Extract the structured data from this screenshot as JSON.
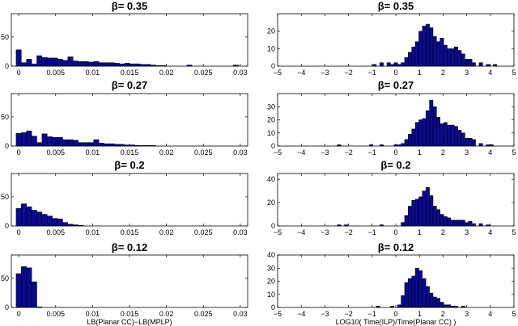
{
  "chart_data": [
    {
      "type": "bar",
      "title": "β= 0.35",
      "xlabel": "",
      "ylabel": "",
      "xlim": [
        -0.001,
        0.031
      ],
      "ylim": [
        0,
        90
      ],
      "bin_width": 0.0007,
      "xticks": [
        0,
        0.005,
        0.01,
        0.015,
        0.02,
        0.025,
        0.03
      ],
      "xtick_labels": [
        "0",
        "0.005",
        "0.01",
        "0.015",
        "0.02",
        "0.025",
        "0.03"
      ],
      "yticks": [
        0,
        50
      ],
      "ytick_labels": [
        "0",
        "50"
      ],
      "bin_centers": [
        0.0,
        0.0007,
        0.0014,
        0.0021,
        0.0028,
        0.0035,
        0.0042,
        0.0049,
        0.0056,
        0.0063,
        0.007,
        0.0077,
        0.0084,
        0.0091,
        0.0098,
        0.0105,
        0.0112,
        0.0119,
        0.0126,
        0.0133,
        0.014,
        0.0147,
        0.0154,
        0.0161,
        0.0168,
        0.0175,
        0.0182,
        0.0189,
        0.0196,
        0.0231,
        0.0294
      ],
      "values": [
        28,
        6,
        12,
        4,
        18,
        15,
        14,
        14,
        12,
        10,
        16,
        9,
        8,
        8,
        7,
        8,
        6,
        6,
        6,
        5,
        4,
        5,
        4,
        4,
        3,
        3,
        2,
        1,
        1,
        2,
        2
      ],
      "color": "#0a0a8c"
    },
    {
      "type": "bar",
      "title": "β= 0.35",
      "xlabel": "",
      "ylabel": "",
      "xlim": [
        -5,
        5
      ],
      "ylim": [
        0,
        30
      ],
      "bin_width": 0.15,
      "xticks": [
        -5,
        -4,
        -3,
        -2,
        -1,
        0,
        1,
        2,
        3,
        4,
        5
      ],
      "xtick_labels": [
        "−5",
        "−4",
        "−3",
        "−2",
        "−1",
        "0",
        "1",
        "2",
        "3",
        "4",
        "5"
      ],
      "yticks": [
        0,
        10,
        20
      ],
      "ytick_labels": [
        "0",
        "10",
        "20"
      ],
      "bin_centers": [
        -0.9,
        -0.6,
        -0.3,
        -0.15,
        0.0,
        0.15,
        0.3,
        0.45,
        0.6,
        0.75,
        0.9,
        1.05,
        1.2,
        1.35,
        1.5,
        1.65,
        1.8,
        1.95,
        2.1,
        2.25,
        2.4,
        2.55,
        2.7,
        2.85,
        3.0,
        3.15,
        3.3,
        3.6,
        3.9,
        4.2
      ],
      "values": [
        1,
        2,
        2,
        1,
        2,
        1,
        2,
        5,
        8,
        11,
        14,
        20,
        23,
        24,
        22,
        17,
        14,
        16,
        12,
        10,
        10,
        11,
        9,
        7,
        4,
        4,
        2,
        2,
        1,
        1
      ],
      "color": "#0a0a8c"
    },
    {
      "type": "bar",
      "title": "β= 0.27",
      "xlabel": "",
      "ylabel": "",
      "xlim": [
        -0.001,
        0.031
      ],
      "ylim": [
        0,
        90
      ],
      "bin_width": 0.0007,
      "xticks": [
        0,
        0.005,
        0.01,
        0.015,
        0.02,
        0.025,
        0.03
      ],
      "xtick_labels": [
        "0",
        "0.005",
        "0.01",
        "0.015",
        "0.02",
        "0.025",
        "0.03"
      ],
      "yticks": [
        0,
        50
      ],
      "ytick_labels": [
        "0",
        "50"
      ],
      "bin_centers": [
        0.0,
        0.0007,
        0.0014,
        0.0021,
        0.0028,
        0.0035,
        0.0042,
        0.0049,
        0.0056,
        0.0063,
        0.007,
        0.0077,
        0.0084,
        0.0091,
        0.0098,
        0.0105,
        0.0112,
        0.0119,
        0.0126,
        0.0133,
        0.014,
        0.0147,
        0.0154,
        0.0161,
        0.0168,
        0.0175,
        0.0182
      ],
      "values": [
        22,
        23,
        26,
        17,
        6,
        21,
        16,
        15,
        15,
        11,
        11,
        10,
        6,
        6,
        6,
        11,
        5,
        4,
        4,
        3,
        3,
        2,
        2,
        1,
        1,
        1,
        1
      ],
      "color": "#0a0a8c"
    },
    {
      "type": "bar",
      "title": "β= 0.27",
      "xlabel": "",
      "ylabel": "",
      "xlim": [
        -5,
        5
      ],
      "ylim": [
        0,
        40
      ],
      "bin_width": 0.15,
      "xticks": [
        -5,
        -4,
        -3,
        -2,
        -1,
        0,
        1,
        2,
        3,
        4,
        5
      ],
      "xtick_labels": [
        "−5",
        "−4",
        "−3",
        "−2",
        "−1",
        "0",
        "1",
        "2",
        "3",
        "4",
        "5"
      ],
      "yticks": [
        0,
        10,
        20,
        30
      ],
      "ytick_labels": [
        "0",
        "10",
        "20",
        "30"
      ],
      "bin_centers": [
        -2.4,
        -1.05,
        -0.6,
        0.0,
        0.15,
        0.3,
        0.45,
        0.6,
        0.75,
        0.9,
        1.05,
        1.2,
        1.35,
        1.5,
        1.65,
        1.8,
        1.95,
        2.1,
        2.25,
        2.4,
        2.55,
        2.7,
        2.85,
        3.0,
        3.15,
        3.3,
        3.6,
        3.9,
        4.05
      ],
      "values": [
        1,
        1,
        1,
        1,
        1,
        2,
        5,
        9,
        13,
        18,
        20,
        21,
        27,
        35,
        30,
        22,
        17,
        18,
        16,
        16,
        15,
        12,
        10,
        6,
        6,
        5,
        2,
        1,
        1
      ],
      "color": "#0a0a8c"
    },
    {
      "type": "bar",
      "title": "β= 0.2",
      "xlabel": "",
      "ylabel": "",
      "xlim": [
        -0.001,
        0.031
      ],
      "ylim": [
        0,
        90
      ],
      "bin_width": 0.0007,
      "xticks": [
        0,
        0.005,
        0.01,
        0.015,
        0.02,
        0.025,
        0.03
      ],
      "xtick_labels": [
        "0",
        "0.005",
        "0.01",
        "0.015",
        "0.02",
        "0.025",
        "0.03"
      ],
      "yticks": [
        0,
        50
      ],
      "ytick_labels": [
        "0",
        "50"
      ],
      "bin_centers": [
        0.0,
        0.0007,
        0.0014,
        0.0021,
        0.0028,
        0.0035,
        0.0042,
        0.0049,
        0.0056,
        0.0063,
        0.007,
        0.0077,
        0.0084
      ],
      "values": [
        30,
        38,
        33,
        27,
        24,
        20,
        17,
        13,
        12,
        6,
        3,
        2,
        1
      ],
      "color": "#0a0a8c"
    },
    {
      "type": "bar",
      "title": "β= 0.2",
      "xlabel": "",
      "ylabel": "",
      "xlim": [
        -5,
        5
      ],
      "ylim": [
        0,
        45
      ],
      "bin_width": 0.15,
      "xticks": [
        -5,
        -4,
        -3,
        -2,
        -1,
        0,
        1,
        2,
        3,
        4,
        5
      ],
      "xtick_labels": [
        "−5",
        "−4",
        "−3",
        "−2",
        "−1",
        "0",
        "1",
        "2",
        "3",
        "4",
        "5"
      ],
      "yticks": [
        0,
        20,
        40
      ],
      "ytick_labels": [
        "0",
        "20",
        "40"
      ],
      "bin_centers": [
        -2.4,
        -2.1,
        -0.6,
        0.3,
        0.45,
        0.6,
        0.75,
        0.9,
        1.05,
        1.2,
        1.35,
        1.5,
        1.65,
        1.8,
        1.95,
        2.1,
        2.25,
        2.4,
        2.55,
        2.7,
        2.85,
        3.0,
        3.15,
        3.3,
        3.6,
        3.9
      ],
      "values": [
        1,
        1,
        1,
        3,
        9,
        17,
        22,
        23,
        25,
        30,
        33,
        26,
        17,
        14,
        10,
        8,
        7,
        5,
        5,
        5,
        5,
        3,
        4,
        2,
        2,
        1
      ],
      "color": "#0a0a8c"
    },
    {
      "type": "bar",
      "title": "β= 0.12",
      "xlabel": "LB(Planar CC)−LB(MPLP)",
      "ylabel": "",
      "xlim": [
        -0.001,
        0.031
      ],
      "ylim": [
        0,
        90
      ],
      "bin_width": 0.0007,
      "xticks": [
        0,
        0.005,
        0.01,
        0.015,
        0.02,
        0.025,
        0.03
      ],
      "xtick_labels": [
        "0",
        "0.005",
        "0.01",
        "0.015",
        "0.02",
        "0.025",
        "0.03"
      ],
      "yticks": [
        0,
        50
      ],
      "ytick_labels": [
        "0",
        "50"
      ],
      "bin_centers": [
        0.0,
        0.0007,
        0.0014,
        0.0021,
        0.0028
      ],
      "values": [
        58,
        70,
        68,
        44,
        1
      ],
      "color": "#0a0a8c"
    },
    {
      "type": "bar",
      "title": "β= 0.12",
      "xlabel": "LOG10( Time(ILP)/Time(Planar CC) )",
      "ylabel": "",
      "xlim": [
        -5,
        5
      ],
      "ylim": [
        0,
        40
      ],
      "bin_width": 0.15,
      "xticks": [
        -5,
        -4,
        -3,
        -2,
        -1,
        0,
        1,
        2,
        3,
        4,
        5
      ],
      "xtick_labels": [
        "−5",
        "−4",
        "−3",
        "−2",
        "−1",
        "0",
        "1",
        "2",
        "3",
        "4",
        "5"
      ],
      "yticks": [
        0,
        10,
        20,
        30,
        40
      ],
      "ytick_labels": [
        "0",
        "10",
        "20",
        "30",
        "40"
      ],
      "bin_centers": [
        -0.75,
        -0.15,
        0.15,
        0.3,
        0.45,
        0.6,
        0.75,
        0.9,
        1.05,
        1.2,
        1.35,
        1.5,
        1.65,
        1.8,
        1.95,
        2.1,
        2.25,
        2.4,
        2.55,
        2.85
      ],
      "values": [
        1,
        1,
        2,
        9,
        19,
        22,
        24,
        30,
        28,
        22,
        16,
        11,
        8,
        7,
        4,
        2,
        2,
        1,
        1,
        1
      ],
      "color": "#0a0a8c"
    }
  ]
}
